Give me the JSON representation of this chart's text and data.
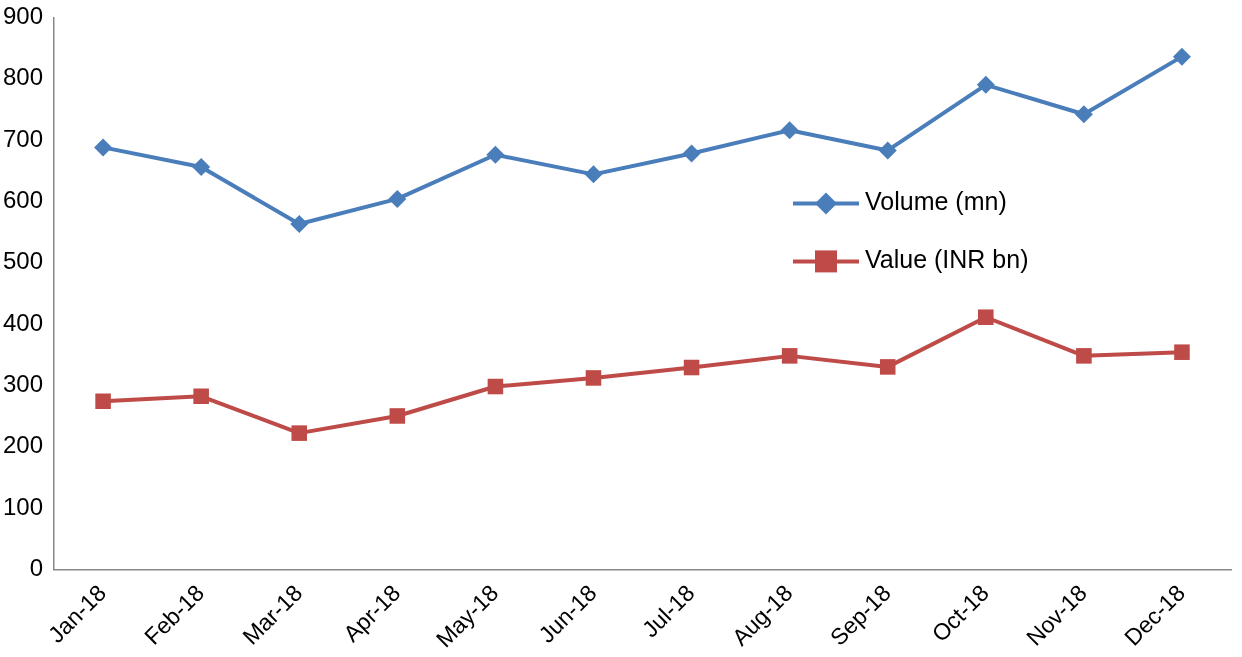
{
  "chart_data": {
    "type": "line",
    "categories": [
      "Jan-18",
      "Feb-18",
      "Mar-18",
      "Apr-18",
      "May-18",
      "Jun-18",
      "Jul-18",
      "Aug-18",
      "Sep-18",
      "Oct-18",
      "Nov-18",
      "Dec-18"
    ],
    "series": [
      {
        "name": "Volume (mn)",
        "color": "#4a7ebb",
        "marker": "diamond",
        "values": [
          688,
          656,
          563,
          604,
          676,
          644,
          678,
          716,
          683,
          790,
          742,
          836
        ]
      },
      {
        "name": "Value (INR bn)",
        "color": "#be4b48",
        "marker": "square",
        "values": [
          274,
          282,
          222,
          250,
          298,
          312,
          329,
          348,
          330,
          411,
          348,
          354
        ]
      }
    ],
    "ylim": [
      0,
      900
    ],
    "yticks": [
      0,
      100,
      200,
      300,
      400,
      500,
      600,
      700,
      800,
      900
    ],
    "grid": false,
    "legend": "right",
    "line_style": "solid"
  }
}
